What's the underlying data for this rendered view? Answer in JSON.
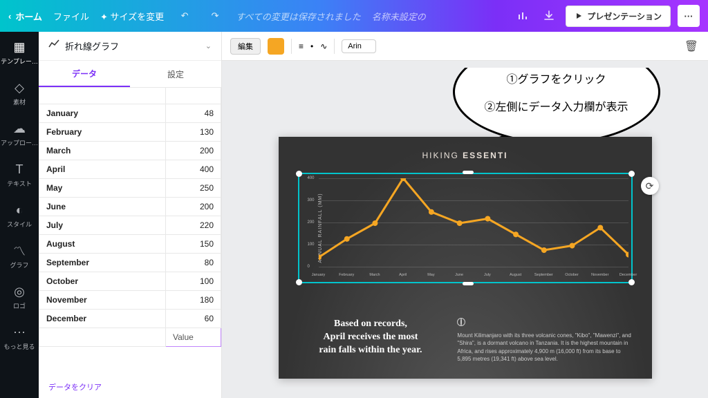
{
  "topbar": {
    "home": "ホーム",
    "file": "ファイル",
    "resize": "サイズを変更",
    "saved_msg": "すべての変更は保存されました",
    "doc_title": "名称未設定の",
    "present": "プレゼンテーション"
  },
  "rail": {
    "templates": "テンプレー…",
    "elements": "素材",
    "uploads": "アップロー…",
    "text": "テキスト",
    "style": "スタイル",
    "graph": "グラフ",
    "logo": "ロゴ",
    "more": "もっと見る"
  },
  "panel": {
    "title": "折れ線グラフ",
    "tab_data": "データ",
    "tab_settings": "設定",
    "value_header": "Value",
    "clear": "データをクリア",
    "rows": [
      {
        "label": "January",
        "value": 48
      },
      {
        "label": "February",
        "value": 130
      },
      {
        "label": "March",
        "value": 200
      },
      {
        "label": "April",
        "value": 400
      },
      {
        "label": "May",
        "value": 250
      },
      {
        "label": "June",
        "value": 200
      },
      {
        "label": "July",
        "value": 220
      },
      {
        "label": "August",
        "value": 150
      },
      {
        "label": "September",
        "value": 80
      },
      {
        "label": "October",
        "value": 100
      },
      {
        "label": "November",
        "value": 180
      },
      {
        "label": "December",
        "value": 60
      }
    ]
  },
  "toolrow": {
    "edit": "編集",
    "font": "Arin",
    "swatch_color": "#f5a623"
  },
  "bubble": {
    "line1": "①グラフをクリック",
    "line2": "②左側にデータ入力欄が表示"
  },
  "slide": {
    "title_prefix": "HIKING ",
    "title_bold": "ESSENTI",
    "left_text_l1": "Based on records,",
    "left_text_l2": "April receives the most",
    "left_text_l3": "rain falls within the year.",
    "right_text": "Mount Kilimanjaro with its three volcanic cones, \"Kibo\", \"Mawenzi\", and \"Shira\", is a dormant volcano in Tanzania. It is the highest mountain in Africa, and rises approximately 4,900 m (16,000 ft) from its base to 5,895 metres (19,341 ft) above sea level.",
    "chart": {
      "type": "line",
      "y_label": "ANNUAL RAINFALL (MM)",
      "line_color": "#f5a623",
      "line_width": 3,
      "marker_size": 4,
      "grid_color": "rgba(255,255,255,.15)",
      "ylim": [
        0,
        400
      ],
      "ytick_step": 100,
      "categories": [
        "January",
        "February",
        "March",
        "April",
        "May",
        "June",
        "July",
        "August",
        "September",
        "October",
        "November",
        "December"
      ],
      "values": [
        48,
        130,
        200,
        400,
        250,
        200,
        220,
        150,
        80,
        100,
        180,
        60
      ]
    }
  }
}
